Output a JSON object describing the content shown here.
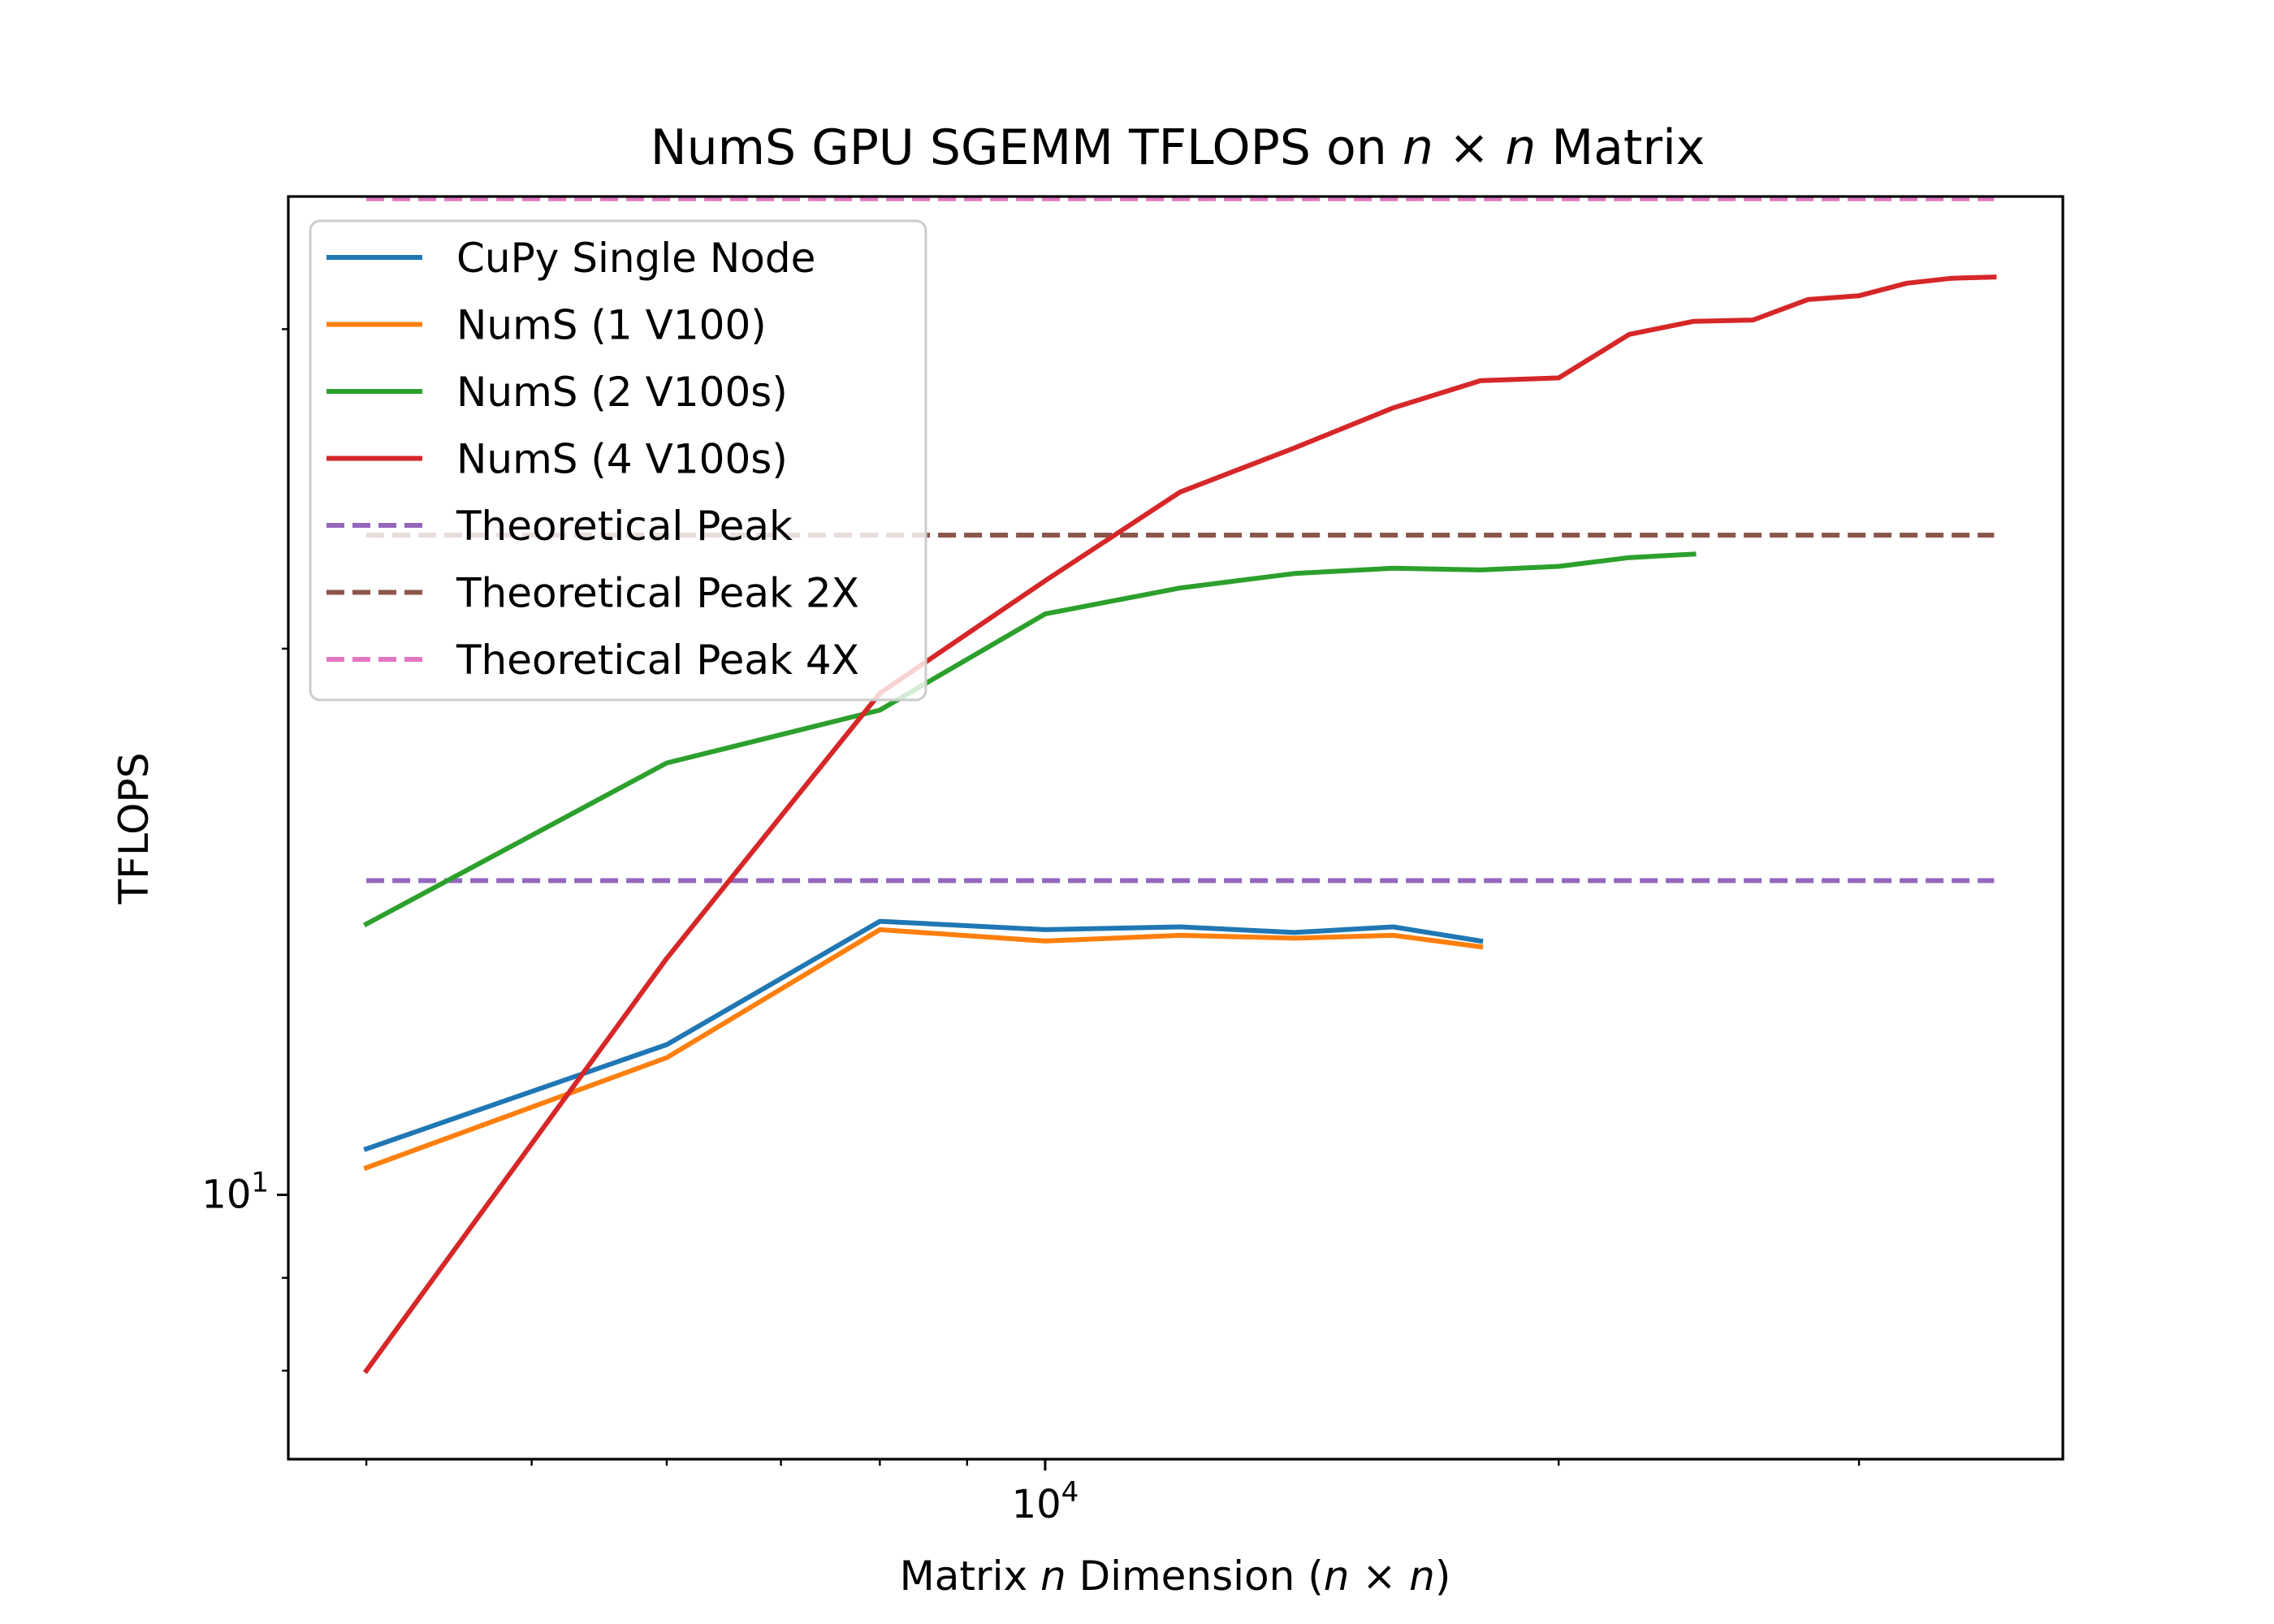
{
  "chart_data": {
    "type": "line",
    "title": {
      "prefix": "NumS GPU SGEMM TFLOPS on ",
      "var1": "n",
      "times": " × ",
      "var2": "n",
      "suffix": " Matrix"
    },
    "xlabel": {
      "prefix": "Matrix ",
      "var": "n",
      "middle": " Dimension (",
      "var2": "n",
      "times": " × ",
      "var3": "n",
      "suffix": ")"
    },
    "ylabel": "TFLOPS",
    "xscale": "log",
    "yscale": "log",
    "xlim": [
      3600,
      39500
    ],
    "ylim": [
      7.15,
      35.5
    ],
    "x_ticks": [
      {
        "base": "10",
        "exp": "4",
        "value": 10000
      }
    ],
    "y_ticks": [
      {
        "base": "10",
        "exp": "1",
        "value": 10
      }
    ],
    "grid": false,
    "legend_position": "upper left",
    "series": [
      {
        "name": "CuPy Single Node",
        "color": "#1f77b4",
        "style": "solid",
        "x": [
          4000,
          6000,
          8000,
          10000,
          12000,
          14000,
          16000,
          18000
        ],
        "y": [
          10.6,
          12.1,
          14.15,
          14.0,
          14.05,
          13.95,
          14.05,
          13.8
        ]
      },
      {
        "name": "NumS (1 V100)",
        "color": "#ff7f0e",
        "style": "solid",
        "x": [
          4000,
          6000,
          8000,
          10000,
          12000,
          14000,
          16000,
          18000
        ],
        "y": [
          10.35,
          11.9,
          14.0,
          13.8,
          13.9,
          13.85,
          13.9,
          13.7
        ]
      },
      {
        "name": "NumS (2 V100s)",
        "color": "#2ca02c",
        "style": "solid",
        "x": [
          4000,
          6000,
          8000,
          10000,
          12000,
          14000,
          16000,
          18000,
          20000,
          22000,
          24000
        ],
        "y": [
          14.1,
          17.3,
          18.5,
          20.9,
          21.6,
          22.0,
          22.15,
          22.1,
          22.2,
          22.45,
          22.55
        ]
      },
      {
        "name": "NumS (4 V100s)",
        "color": "#d62728",
        "style": "solid",
        "x": [
          4000,
          6000,
          8000,
          10000,
          12000,
          14000,
          16000,
          18000,
          20000,
          22000,
          24000,
          26000,
          28000,
          30000,
          32000,
          34000,
          36000
        ],
        "y": [
          8.0,
          13.5,
          18.9,
          21.8,
          24.4,
          25.8,
          27.15,
          28.1,
          28.2,
          29.8,
          30.3,
          30.35,
          31.15,
          31.3,
          31.8,
          32.0,
          32.05
        ]
      },
      {
        "name": "Theoretical Peak",
        "color": "#9467bd",
        "style": "dashed",
        "x": [
          4000,
          36000
        ],
        "y": [
          14.9,
          14.9
        ]
      },
      {
        "name": "Theoretical Peak 2X",
        "color": "#8c564b",
        "style": "dashed",
        "x": [
          4000,
          36000
        ],
        "y": [
          23.1,
          23.1
        ]
      },
      {
        "name": "Theoretical Peak 4X",
        "color": "#e377c2",
        "style": "dashed",
        "x": [
          4000,
          36000
        ],
        "y": [
          35.4,
          35.4
        ]
      }
    ]
  }
}
